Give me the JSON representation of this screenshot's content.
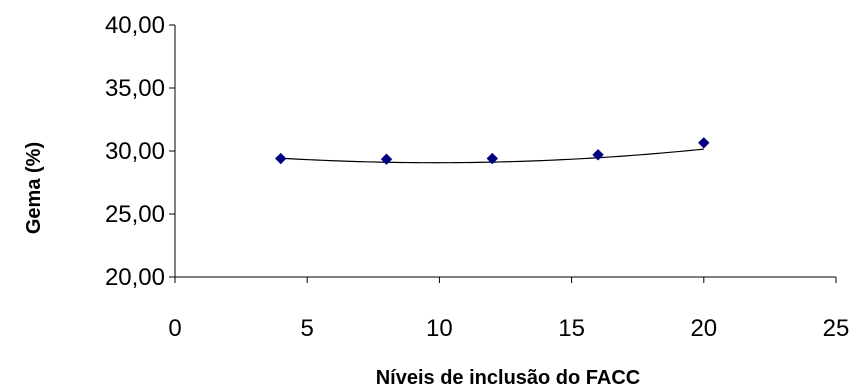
{
  "chart_data": {
    "type": "scatter",
    "title": "",
    "xlabel": "Níveis de inclusão do FACC",
    "ylabel": "Gema (%)",
    "xlim": [
      0,
      25
    ],
    "ylim": [
      20,
      40
    ],
    "x_ticks": [
      0,
      5,
      10,
      15,
      20,
      25
    ],
    "x_tick_labels": [
      "0",
      "5",
      "10",
      "15",
      "20",
      "25"
    ],
    "y_ticks": [
      20,
      25,
      30,
      35,
      40
    ],
    "y_tick_labels": [
      "20,00",
      "25,00",
      "30,00",
      "35,00",
      "40,00"
    ],
    "grid": false,
    "legend": "none",
    "series": [
      {
        "x": [
          4,
          8,
          12,
          16,
          20
        ],
        "y": [
          29.4,
          29.35,
          29.4,
          29.7,
          30.65
        ],
        "marker": "diamond",
        "color": "#000080"
      }
    ],
    "trendline": {
      "kind": "polynomial-2",
      "coefficients": [
        30.09,
        -0.207,
        0.0105
      ],
      "x_range": [
        4,
        20
      ],
      "color": "#000000"
    }
  }
}
